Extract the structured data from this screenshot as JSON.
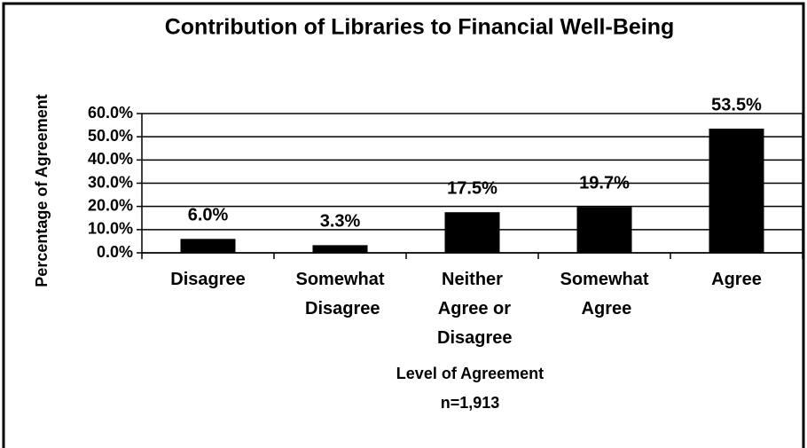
{
  "chart_data": {
    "type": "bar",
    "title": "Contribution of Libraries to Financial Well-Being",
    "x_label": "Level of Agreement",
    "note": "n=1,913",
    "y_label": "Percentage of Agreement",
    "categories": [
      "Disagree",
      "Somewhat Disagree",
      "Neither Agree or Disagree",
      "Somewhat Agree",
      "Agree"
    ],
    "values": [
      6.0,
      3.3,
      17.5,
      19.7,
      53.5
    ],
    "value_labels": [
      "6.0%",
      "3.3%",
      "17.5%",
      "19.7%",
      "53.5%"
    ],
    "color": "#000000",
    "ylim": [
      0,
      60
    ],
    "yticks": [
      {
        "value": 0,
        "label": "0.0%"
      },
      {
        "value": 10,
        "label": "10.0%"
      },
      {
        "value": 20,
        "label": "20.0%"
      },
      {
        "value": 30,
        "label": "30.0%"
      },
      {
        "value": 40,
        "label": "40.0%"
      },
      {
        "value": 50,
        "label": "50.0%"
      },
      {
        "value": 60,
        "label": "60.0%"
      }
    ],
    "grid": true
  }
}
